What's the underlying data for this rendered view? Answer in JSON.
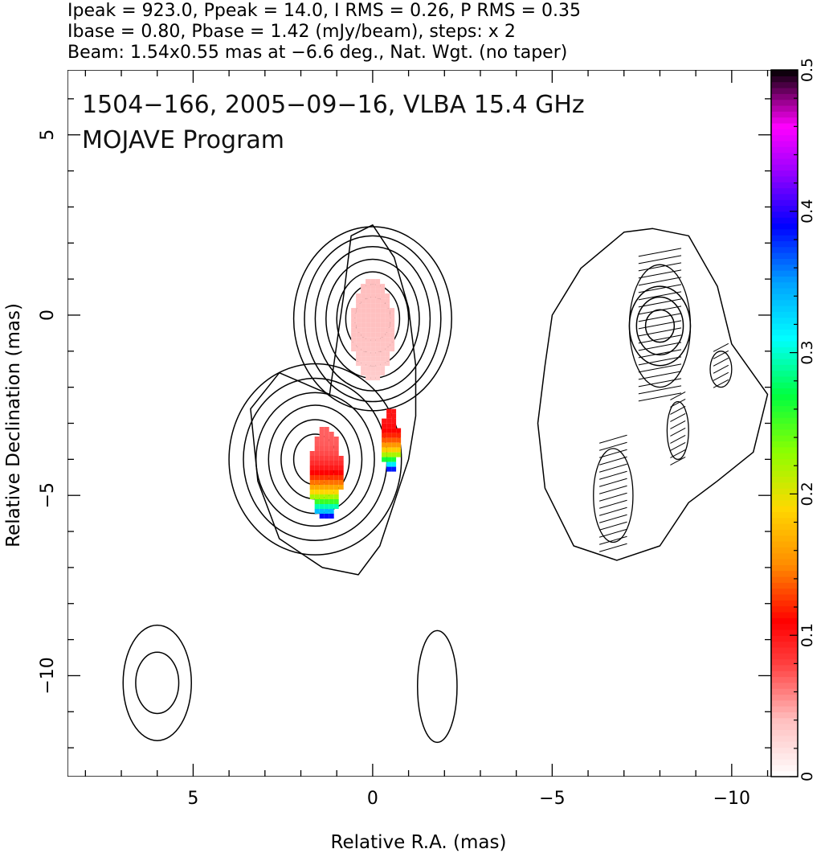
{
  "header": {
    "line1": "Ipeak = 923.0, Ppeak = 14.0, I RMS = 0.26, P RMS = 0.35",
    "line2": "Ibase = 0.80, Pbase = 1.42 (mJy/beam), steps: x 2",
    "line3": "Beam: 1.54x0.55 mas at −6.6 deg., Nat. Wgt. (no taper)"
  },
  "plot_labels": {
    "source_line": "1504−166, 2005−09−16, VLBA 15.4 GHz",
    "program_line": "MOJAVE Program"
  },
  "chart_data": {
    "type": "heatmap",
    "title": "1504−166, 2005−09−16, VLBA 15.4 GHz",
    "subtitle": "MOJAVE Program",
    "xlabel": "Relative R.A. (mas)",
    "ylabel": "Relative Declination (mas)",
    "xlim": [
      8.5,
      -11.1
    ],
    "ylim": [
      -12.8,
      6.8
    ],
    "x_ticks": [
      5,
      0,
      -5,
      -10
    ],
    "x_tick_labels": [
      "5",
      "0",
      "−5",
      "−10"
    ],
    "y_ticks": [
      5,
      0,
      -5,
      -10
    ],
    "y_tick_labels": [
      "5",
      "0",
      "−5",
      "−10"
    ],
    "x_minor_step": 1,
    "y_minor_step": 1,
    "colorbar": {
      "min": 0,
      "max": 0.5,
      "ticks": [
        0,
        0.1,
        0.2,
        0.3,
        0.4,
        0.5
      ],
      "tick_labels": [
        "0",
        "0.1",
        "0.2",
        "0.3",
        "0.4",
        "0.5"
      ],
      "stops": [
        {
          "v": 0.0,
          "c": "#ffffff"
        },
        {
          "v": 0.04,
          "c": "#ffbfbf"
        },
        {
          "v": 0.08,
          "c": "#ff4040"
        },
        {
          "v": 0.11,
          "c": "#ff0000"
        },
        {
          "v": 0.15,
          "c": "#ff8c00"
        },
        {
          "v": 0.19,
          "c": "#ffd800"
        },
        {
          "v": 0.23,
          "c": "#8cff00"
        },
        {
          "v": 0.27,
          "c": "#00ff40"
        },
        {
          "v": 0.31,
          "c": "#00ffff"
        },
        {
          "v": 0.35,
          "c": "#00a0ff"
        },
        {
          "v": 0.39,
          "c": "#0000ff"
        },
        {
          "v": 0.43,
          "c": "#a000ff"
        },
        {
          "v": 0.46,
          "c": "#ff00ff"
        },
        {
          "v": 0.48,
          "c": "#8c0080"
        },
        {
          "v": 0.5,
          "c": "#000000"
        }
      ]
    },
    "contour_components": [
      {
        "name": "core",
        "x": 0.0,
        "y": -0.1,
        "sx": 0.6,
        "sy": 1.1,
        "nx": [
          0.5,
          0.75,
          1.0,
          1.3,
          1.6,
          1.9,
          2.2
        ],
        "ny": [
          0.6,
          0.95,
          1.3,
          1.65,
          2.0,
          2.3,
          2.55
        ]
      },
      {
        "name": "inner-jet",
        "x": 1.6,
        "y": -4.0,
        "sx": 0.75,
        "sy": 1.0,
        "nx": [
          0.6,
          0.95,
          1.3,
          1.65,
          2.0,
          2.4
        ],
        "ny": [
          0.7,
          1.1,
          1.5,
          1.85,
          2.25,
          2.65
        ]
      },
      {
        "name": "eastern-blob",
        "x": -8.0,
        "y": -0.3,
        "sx": 0.5,
        "sy": 0.9,
        "nx": [
          0.4,
          0.65,
          0.85
        ],
        "ny": [
          0.45,
          0.8,
          1.1
        ]
      },
      {
        "name": "southwest-feature",
        "x": 6.0,
        "y": -10.2,
        "sx": 0.8,
        "sy": 1.0,
        "nx": [
          0.6,
          0.95
        ],
        "ny": [
          0.85,
          1.6
        ]
      },
      {
        "name": "south-center-feature",
        "x": -1.8,
        "y": -10.3,
        "sx": 0.5,
        "sy": 1.0,
        "nx": [
          0.55
        ],
        "ny": [
          1.55
        ]
      }
    ],
    "envelope_outlines": [
      [
        [
          1.2,
          -2.2
        ],
        [
          2.6,
          -1.6
        ],
        [
          3.4,
          -2.6
        ],
        [
          3.2,
          -4.6
        ],
        [
          2.6,
          -6.2
        ],
        [
          1.4,
          -7.0
        ],
        [
          0.4,
          -7.2
        ],
        [
          -0.2,
          -6.4
        ],
        [
          -0.6,
          -5.2
        ],
        [
          -1.0,
          -4.0
        ],
        [
          -1.2,
          -2.8
        ],
        [
          -1.2,
          -1.4
        ],
        [
          -1.0,
          0.2
        ],
        [
          -0.6,
          1.6
        ],
        [
          0.0,
          2.5
        ],
        [
          0.6,
          2.2
        ],
        [
          0.8,
          0.6
        ],
        [
          1.0,
          -0.8
        ]
      ],
      [
        [
          -7.0,
          2.3
        ],
        [
          -5.8,
          1.3
        ],
        [
          -5.0,
          0.0
        ],
        [
          -4.8,
          -1.4
        ],
        [
          -4.6,
          -3.0
        ],
        [
          -4.8,
          -4.8
        ],
        [
          -5.6,
          -6.4
        ],
        [
          -6.8,
          -6.8
        ],
        [
          -8.0,
          -6.4
        ],
        [
          -8.8,
          -5.2
        ],
        [
          -9.6,
          -4.6
        ],
        [
          -10.6,
          -3.8
        ],
        [
          -11.0,
          -2.2
        ],
        [
          -10.0,
          -0.8
        ],
        [
          -9.6,
          0.8
        ],
        [
          -8.8,
          2.2
        ],
        [
          -7.8,
          2.4
        ]
      ]
    ],
    "polarized_patches": [
      {
        "name": "core-pol",
        "x": 0.0,
        "y": -0.4,
        "rx": 0.6,
        "ry": 1.4,
        "values": [
          0.04,
          0.03
        ]
      },
      {
        "name": "inner-jet-pol",
        "x": 1.3,
        "y": -4.4,
        "rx": 0.45,
        "ry": 1.3,
        "values": [
          0.07,
          0.47
        ]
      },
      {
        "name": "jet-edge-pol",
        "x": -0.5,
        "y": -3.5,
        "rx": 0.25,
        "ry": 0.9,
        "values": [
          0.1,
          0.5
        ]
      }
    ],
    "hatched_regions": [
      {
        "x": -8.0,
        "y": -0.3,
        "rx": 0.85,
        "ry": 1.7
      },
      {
        "x": -6.7,
        "y": -5.0,
        "rx": 0.55,
        "ry": 1.3
      },
      {
        "x": -8.5,
        "y": -3.2,
        "rx": 0.3,
        "ry": 0.8
      },
      {
        "x": -9.7,
        "y": -1.5,
        "rx": 0.3,
        "ry": 0.5
      }
    ]
  }
}
